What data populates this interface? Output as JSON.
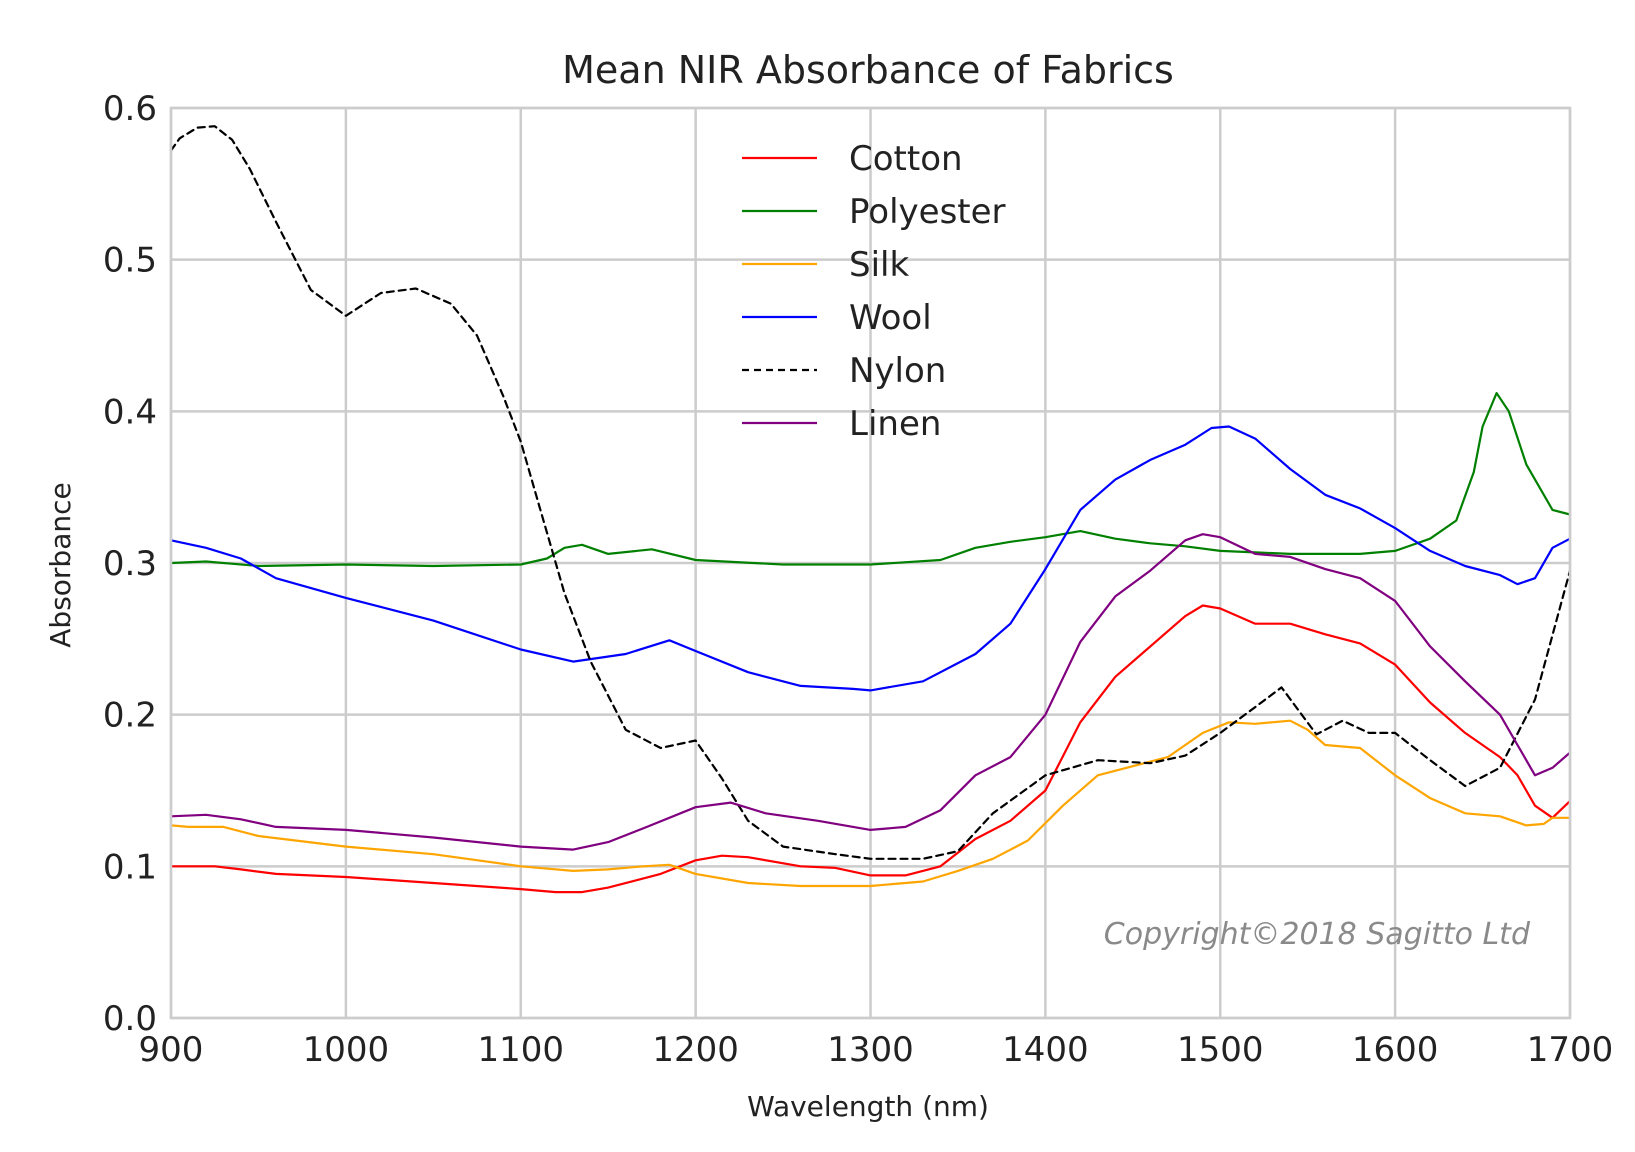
{
  "chart_data": {
    "type": "line",
    "title": "Mean NIR Absorbance of Fabrics",
    "xlabel": "Wavelength (nm)",
    "ylabel": "Absorbance",
    "xlim": [
      900,
      1700
    ],
    "ylim": [
      0.0,
      0.6
    ],
    "xticks": [
      "900",
      "1000",
      "1100",
      "1200",
      "1300",
      "1400",
      "1500",
      "1600",
      "1700"
    ],
    "yticks": [
      "0.0",
      "0.1",
      "0.2",
      "0.3",
      "0.4",
      "0.5",
      "0.6"
    ],
    "grid": true,
    "legend_position": "top-center",
    "annotation": "Copyright©2018 Sagitto Ltd",
    "series": [
      {
        "name": "Cotton",
        "color": "#ff0000",
        "dashed": false,
        "x": [
          900,
          925,
          940,
          960,
          1000,
          1050,
          1100,
          1120,
          1135,
          1150,
          1180,
          1200,
          1215,
          1230,
          1260,
          1280,
          1300,
          1320,
          1340,
          1360,
          1380,
          1400,
          1420,
          1440,
          1460,
          1480,
          1490,
          1500,
          1520,
          1540,
          1560,
          1580,
          1600,
          1620,
          1640,
          1660,
          1670,
          1680,
          1690,
          1700
        ],
        "y": [
          0.1,
          0.1,
          0.098,
          0.095,
          0.093,
          0.089,
          0.085,
          0.083,
          0.083,
          0.086,
          0.095,
          0.104,
          0.107,
          0.106,
          0.1,
          0.099,
          0.094,
          0.094,
          0.1,
          0.118,
          0.13,
          0.15,
          0.195,
          0.225,
          0.245,
          0.265,
          0.272,
          0.27,
          0.26,
          0.26,
          0.253,
          0.247,
          0.233,
          0.208,
          0.188,
          0.172,
          0.16,
          0.14,
          0.132,
          0.143
        ]
      },
      {
        "name": "Polyester",
        "color": "#008000",
        "dashed": false,
        "x": [
          900,
          920,
          950,
          1000,
          1050,
          1100,
          1115,
          1125,
          1135,
          1150,
          1175,
          1200,
          1250,
          1300,
          1340,
          1360,
          1380,
          1400,
          1420,
          1440,
          1460,
          1480,
          1500,
          1520,
          1540,
          1560,
          1580,
          1600,
          1620,
          1635,
          1645,
          1650,
          1658,
          1665,
          1675,
          1690,
          1700
        ],
        "y": [
          0.3,
          0.301,
          0.298,
          0.299,
          0.298,
          0.299,
          0.303,
          0.31,
          0.312,
          0.306,
          0.309,
          0.302,
          0.299,
          0.299,
          0.302,
          0.31,
          0.314,
          0.317,
          0.321,
          0.316,
          0.313,
          0.311,
          0.308,
          0.307,
          0.306,
          0.306,
          0.306,
          0.308,
          0.316,
          0.328,
          0.36,
          0.39,
          0.412,
          0.4,
          0.365,
          0.335,
          0.332
        ]
      },
      {
        "name": "Silk",
        "color": "#ffa500",
        "dashed": false,
        "x": [
          900,
          910,
          930,
          950,
          1000,
          1050,
          1100,
          1130,
          1150,
          1170,
          1185,
          1200,
          1230,
          1260,
          1300,
          1330,
          1350,
          1370,
          1390,
          1410,
          1430,
          1450,
          1470,
          1490,
          1505,
          1520,
          1540,
          1550,
          1560,
          1580,
          1600,
          1620,
          1640,
          1660,
          1675,
          1685,
          1690,
          1700
        ],
        "y": [
          0.127,
          0.126,
          0.126,
          0.12,
          0.113,
          0.108,
          0.1,
          0.097,
          0.098,
          0.1,
          0.101,
          0.095,
          0.089,
          0.087,
          0.087,
          0.09,
          0.097,
          0.105,
          0.117,
          0.14,
          0.16,
          0.166,
          0.172,
          0.188,
          0.195,
          0.194,
          0.196,
          0.19,
          0.18,
          0.178,
          0.16,
          0.145,
          0.135,
          0.133,
          0.127,
          0.128,
          0.132,
          0.132
        ]
      },
      {
        "name": "Wool",
        "color": "#0000ff",
        "dashed": false,
        "x": [
          900,
          920,
          940,
          960,
          1000,
          1050,
          1100,
          1130,
          1160,
          1185,
          1200,
          1230,
          1260,
          1290,
          1300,
          1330,
          1360,
          1380,
          1400,
          1420,
          1440,
          1460,
          1480,
          1495,
          1505,
          1520,
          1540,
          1560,
          1580,
          1600,
          1620,
          1640,
          1660,
          1670,
          1680,
          1690,
          1700
        ],
        "y": [
          0.315,
          0.31,
          0.303,
          0.29,
          0.277,
          0.262,
          0.243,
          0.235,
          0.24,
          0.249,
          0.242,
          0.228,
          0.219,
          0.217,
          0.216,
          0.222,
          0.24,
          0.26,
          0.296,
          0.335,
          0.355,
          0.368,
          0.378,
          0.389,
          0.39,
          0.382,
          0.362,
          0.345,
          0.336,
          0.323,
          0.308,
          0.298,
          0.292,
          0.286,
          0.29,
          0.31,
          0.316
        ]
      },
      {
        "name": "Nylon",
        "color": "#000000",
        "dashed": true,
        "x": [
          900,
          905,
          915,
          925,
          935,
          945,
          960,
          980,
          1000,
          1020,
          1040,
          1060,
          1075,
          1090,
          1100,
          1110,
          1125,
          1140,
          1160,
          1180,
          1200,
          1215,
          1230,
          1250,
          1280,
          1300,
          1330,
          1350,
          1370,
          1400,
          1430,
          1460,
          1480,
          1500,
          1520,
          1535,
          1555,
          1570,
          1585,
          1600,
          1620,
          1640,
          1660,
          1680,
          1700
        ],
        "y": [
          0.572,
          0.58,
          0.587,
          0.588,
          0.579,
          0.56,
          0.525,
          0.48,
          0.463,
          0.478,
          0.481,
          0.471,
          0.45,
          0.41,
          0.38,
          0.34,
          0.28,
          0.235,
          0.19,
          0.178,
          0.183,
          0.158,
          0.13,
          0.113,
          0.108,
          0.105,
          0.105,
          0.11,
          0.135,
          0.16,
          0.17,
          0.168,
          0.173,
          0.188,
          0.205,
          0.218,
          0.187,
          0.196,
          0.188,
          0.188,
          0.17,
          0.153,
          0.165,
          0.21,
          0.295
        ]
      },
      {
        "name": "Linen",
        "color": "#800080",
        "dashed": false,
        "x": [
          900,
          920,
          940,
          960,
          1000,
          1050,
          1100,
          1130,
          1150,
          1170,
          1200,
          1220,
          1240,
          1270,
          1300,
          1320,
          1340,
          1360,
          1380,
          1400,
          1420,
          1440,
          1460,
          1480,
          1490,
          1500,
          1520,
          1540,
          1560,
          1580,
          1600,
          1620,
          1640,
          1660,
          1670,
          1680,
          1690,
          1700
        ],
        "y": [
          0.133,
          0.134,
          0.131,
          0.126,
          0.124,
          0.119,
          0.113,
          0.111,
          0.116,
          0.125,
          0.139,
          0.142,
          0.135,
          0.13,
          0.124,
          0.126,
          0.137,
          0.16,
          0.172,
          0.2,
          0.248,
          0.278,
          0.295,
          0.315,
          0.319,
          0.317,
          0.306,
          0.304,
          0.296,
          0.29,
          0.275,
          0.245,
          0.222,
          0.2,
          0.18,
          0.16,
          0.165,
          0.175
        ]
      }
    ]
  }
}
